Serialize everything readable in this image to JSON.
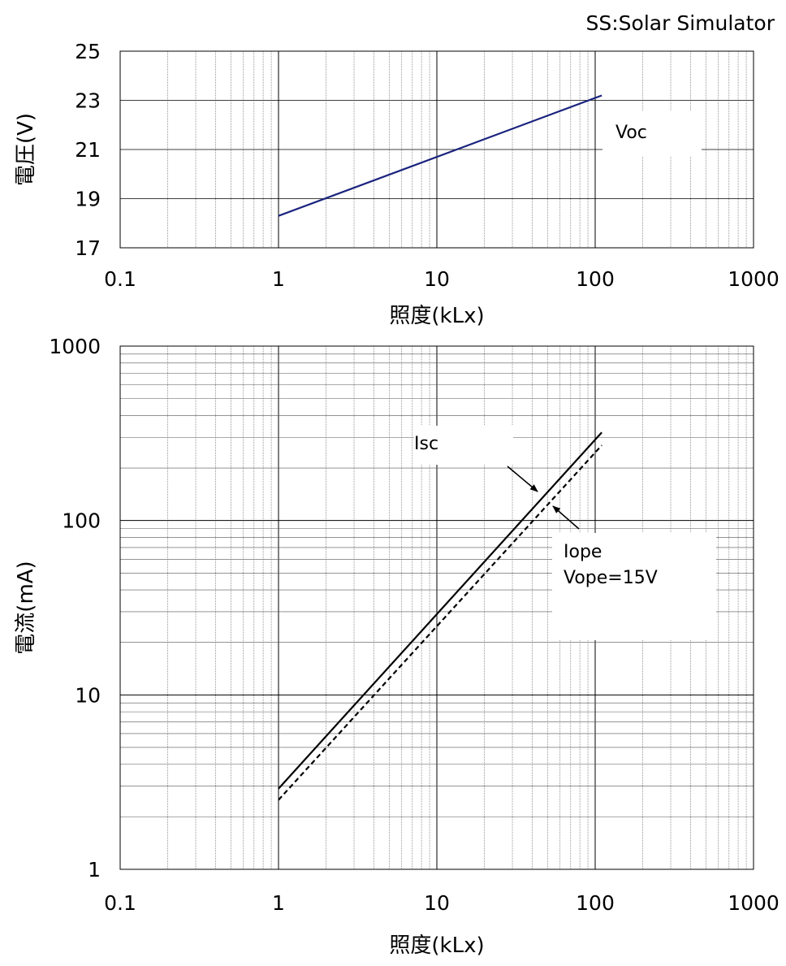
{
  "caption": "SS:Solar Simulator",
  "chart_data": [
    {
      "type": "line",
      "title": "",
      "xlabel": "照度(kLx)",
      "ylabel": "電圧(V)",
      "xscale": "log",
      "yscale": "linear",
      "xlim": [
        0.1,
        1000
      ],
      "ylim": [
        17,
        25
      ],
      "xticks": [
        "0.1",
        "1",
        "10",
        "100",
        "1000"
      ],
      "yticks": [
        "17",
        "19",
        "21",
        "23",
        "25"
      ],
      "grid": true,
      "series": [
        {
          "name": "Voc",
          "color": "#1a237e",
          "dash": "solid",
          "x": [
            1,
            110
          ],
          "y": [
            18.3,
            23.2
          ]
        }
      ],
      "annotations": [
        {
          "text": "Voc"
        }
      ]
    },
    {
      "type": "line",
      "title": "",
      "xlabel": "照度(kLx)",
      "ylabel": "電流(mA)",
      "xscale": "log",
      "yscale": "log",
      "xlim": [
        0.1,
        1000
      ],
      "ylim": [
        1,
        1000
      ],
      "xticks": [
        "0.1",
        "1",
        "10",
        "100",
        "1000"
      ],
      "yticks": [
        "1",
        "10",
        "100",
        "1000"
      ],
      "grid": true,
      "series": [
        {
          "name": "Isc",
          "color": "#000000",
          "dash": "solid",
          "x": [
            1,
            110
          ],
          "y": [
            2.9,
            320
          ]
        },
        {
          "name": "Iope",
          "color": "#000000",
          "dash": "dashed",
          "x": [
            1,
            110
          ],
          "y": [
            2.5,
            270
          ]
        }
      ],
      "annotations": [
        {
          "text": "Isc"
        },
        {
          "text": "Iope"
        },
        {
          "text": "Vope=15V"
        }
      ]
    }
  ]
}
